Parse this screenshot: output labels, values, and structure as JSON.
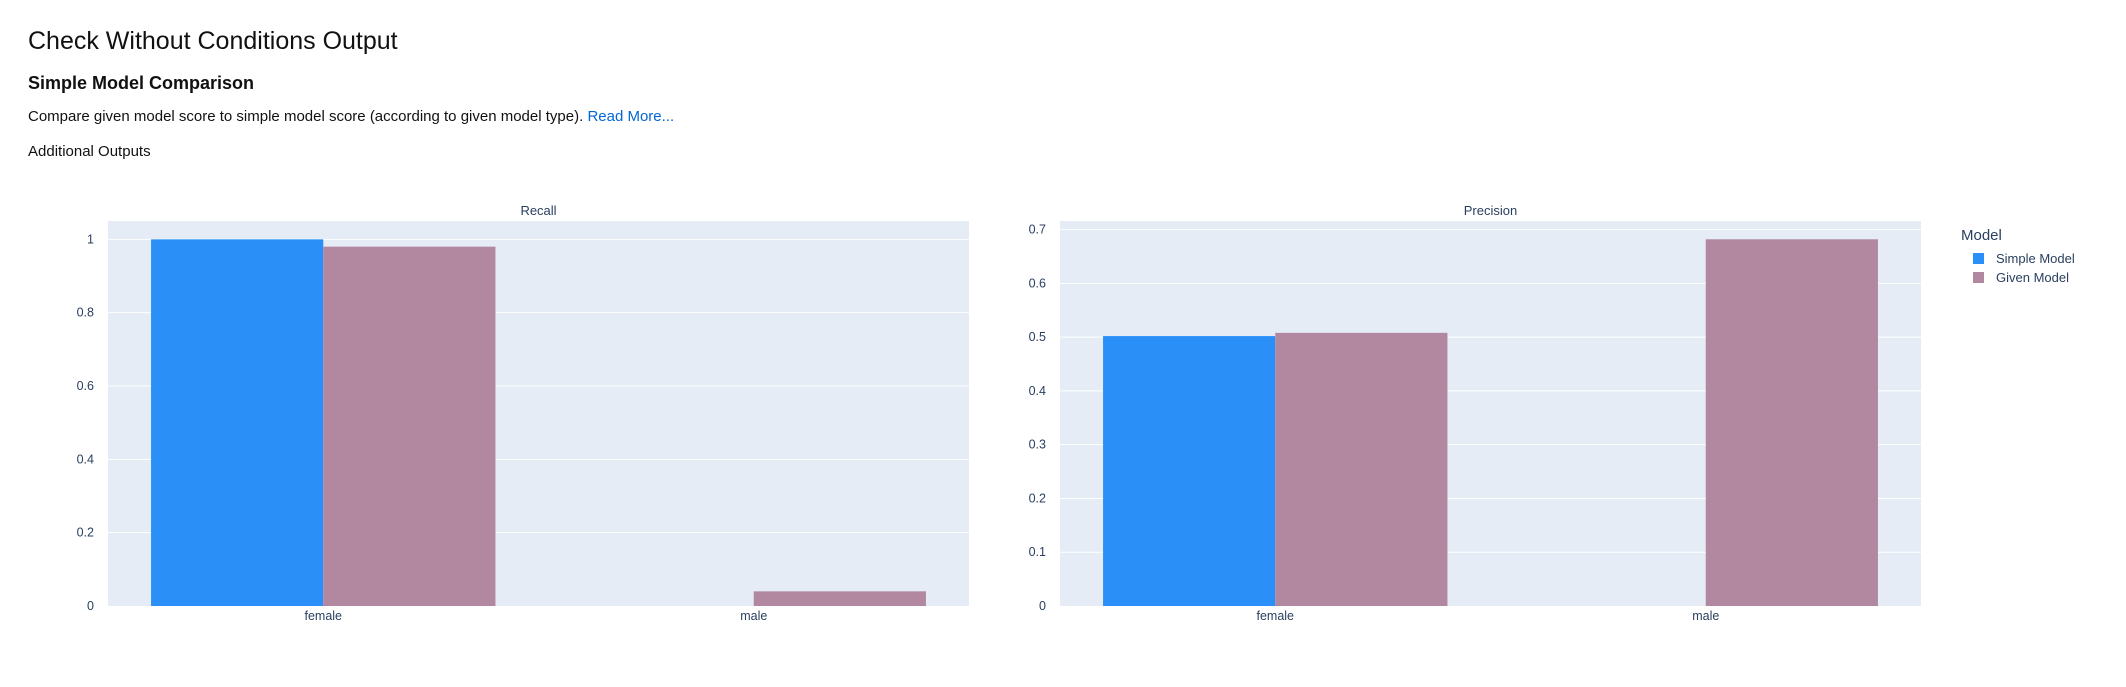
{
  "page": {
    "title": "Check Without Conditions Output",
    "section_title": "Simple Model Comparison",
    "description": "Compare given model score to simple model score (according to given model type).",
    "read_more": "Read More...",
    "additional_outputs": "Additional Outputs"
  },
  "legend": {
    "title": "Model"
  },
  "colors": {
    "simple": "#2a90f7",
    "given": "#b288a1",
    "plot_bg": "#e5ecf6",
    "grid": "#ffffff",
    "tick_text": "#2a3f5f"
  },
  "chart_data": [
    {
      "type": "bar",
      "title": "Recall",
      "categories": [
        "female",
        "male"
      ],
      "series": [
        {
          "name": "Simple Model",
          "values": [
            1.0,
            0.0
          ]
        },
        {
          "name": "Given Model",
          "values": [
            0.98,
            0.04
          ]
        }
      ],
      "ylim": [
        0,
        1.05
      ],
      "yticks": [
        0,
        0.2,
        0.4,
        0.6,
        0.8,
        1
      ],
      "ytick_labels": [
        "0",
        "0.2",
        "0.4",
        "0.6",
        "0.8",
        "1"
      ],
      "grid": true
    },
    {
      "type": "bar",
      "title": "Precision",
      "categories": [
        "female",
        "male"
      ],
      "series": [
        {
          "name": "Simple Model",
          "values": [
            0.502,
            0.0
          ]
        },
        {
          "name": "Given Model",
          "values": [
            0.508,
            0.682
          ]
        }
      ],
      "ylim": [
        0,
        0.716
      ],
      "yticks": [
        0,
        0.1,
        0.2,
        0.3,
        0.4,
        0.5,
        0.6,
        0.7
      ],
      "ytick_labels": [
        "0",
        "0.1",
        "0.2",
        "0.3",
        "0.4",
        "0.5",
        "0.6",
        "0.7"
      ],
      "grid": true,
      "legend_placement": "right"
    }
  ]
}
